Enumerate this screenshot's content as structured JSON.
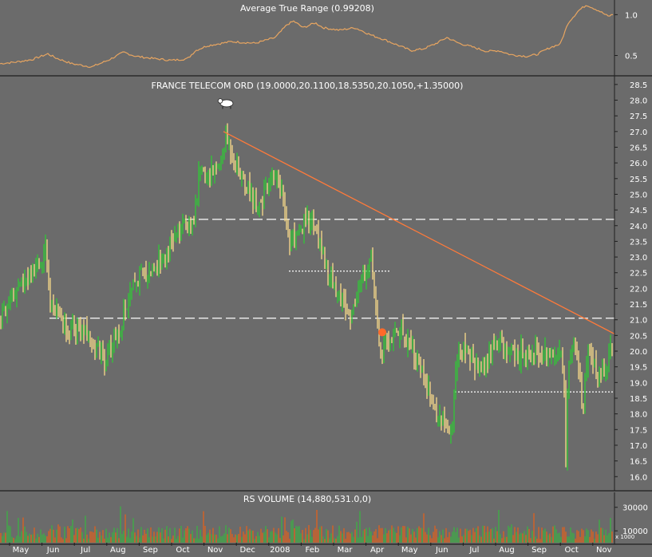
{
  "colors": {
    "background": "#6b6b6b",
    "frame": "#1f1f1f",
    "up_bar": "#34c23a",
    "down_bar": "#f0d488",
    "atr_line": "#e8a560",
    "trendline": "#ff7a3a",
    "marker": "#ff6a2a",
    "text": "#ffffff",
    "volume_up": "#3cb043",
    "volume_down": "#e0601c"
  },
  "chart_data": [
    {
      "type": "line",
      "title": "Average True Range (0.99208)",
      "y_ticks": [
        "1.0",
        "0.5"
      ],
      "ylim": [
        0.3,
        1.15
      ],
      "series": [
        {
          "name": "ATR",
          "points": [
            [
              0,
              0.4
            ],
            [
              20,
              0.42
            ],
            [
              40,
              0.45
            ],
            [
              60,
              0.52
            ],
            [
              70,
              0.47
            ],
            [
              90,
              0.4
            ],
            [
              115,
              0.36
            ],
            [
              135,
              0.44
            ],
            [
              155,
              0.54
            ],
            [
              170,
              0.49
            ],
            [
              195,
              0.46
            ],
            [
              215,
              0.44
            ],
            [
              235,
              0.46
            ],
            [
              245,
              0.56
            ],
            [
              260,
              0.62
            ],
            [
              290,
              0.67
            ],
            [
              320,
              0.65
            ],
            [
              345,
              0.72
            ],
            [
              360,
              0.88
            ],
            [
              368,
              0.92
            ],
            [
              380,
              0.84
            ],
            [
              395,
              0.9
            ],
            [
              405,
              0.84
            ],
            [
              425,
              0.81
            ],
            [
              445,
              0.84
            ],
            [
              465,
              0.75
            ],
            [
              480,
              0.7
            ],
            [
              500,
              0.62
            ],
            [
              515,
              0.56
            ],
            [
              530,
              0.58
            ],
            [
              545,
              0.64
            ],
            [
              560,
              0.72
            ],
            [
              575,
              0.65
            ],
            [
              590,
              0.61
            ],
            [
              610,
              0.55
            ],
            [
              625,
              0.56
            ],
            [
              640,
              0.51
            ],
            [
              660,
              0.49
            ],
            [
              672,
              0.51
            ],
            [
              690,
              0.6
            ],
            [
              702,
              0.64
            ],
            [
              712,
              0.9
            ],
            [
              725,
              1.05
            ],
            [
              735,
              1.12
            ],
            [
              750,
              1.05
            ],
            [
              762,
              0.98
            ],
            [
              768,
              1.0
            ]
          ]
        }
      ]
    },
    {
      "type": "candlestick",
      "title": "FRANCE TELECOM ORD (19.0000,20.1100,18.5350,20.1050,+1.35000)",
      "x_labels": [
        "May",
        "Jun",
        "Jul",
        "Aug",
        "Sep",
        "Oct",
        "Nov",
        "Dec",
        "2008",
        "Feb",
        "Mar",
        "Apr",
        "May",
        "Jun",
        "Jul",
        "Aug",
        "Sep",
        "Oct",
        "Nov"
      ],
      "y_ticks": [
        "28.5",
        "28.0",
        "27.5",
        "27.0",
        "26.5",
        "26.0",
        "25.5",
        "25.0",
        "24.5",
        "24.0",
        "23.5",
        "23.0",
        "22.5",
        "22.0",
        "21.5",
        "21.0",
        "20.5",
        "20.0",
        "19.5",
        "19.0",
        "18.5",
        "18.0",
        "17.5",
        "17.0",
        "16.5",
        "16.0"
      ],
      "ylim": [
        15.6,
        28.7
      ],
      "grid": false,
      "price_path": [
        [
          0,
          21.0
        ],
        [
          8,
          21.4
        ],
        [
          18,
          21.8
        ],
        [
          28,
          22.1
        ],
        [
          40,
          22.3
        ],
        [
          52,
          22.9
        ],
        [
          56,
          23.5
        ],
        [
          60,
          22.8
        ],
        [
          62,
          21.3
        ],
        [
          70,
          21.4
        ],
        [
          82,
          20.8
        ],
        [
          90,
          20.6
        ],
        [
          100,
          20.7
        ],
        [
          112,
          20.4
        ],
        [
          125,
          20.0
        ],
        [
          132,
          19.6
        ],
        [
          138,
          20.1
        ],
        [
          145,
          20.5
        ],
        [
          152,
          20.9
        ],
        [
          158,
          21.4
        ],
        [
          166,
          21.9
        ],
        [
          176,
          22.4
        ],
        [
          186,
          22.5
        ],
        [
          196,
          22.8
        ],
        [
          206,
          23.1
        ],
        [
          216,
          23.5
        ],
        [
          226,
          23.8
        ],
        [
          236,
          24.1
        ],
        [
          244,
          24.3
        ],
        [
          250,
          25.7
        ],
        [
          258,
          25.6
        ],
        [
          268,
          25.8
        ],
        [
          276,
          25.9
        ],
        [
          283,
          26.8
        ],
        [
          290,
          26.4
        ],
        [
          298,
          25.8
        ],
        [
          306,
          25.4
        ],
        [
          314,
          25.0
        ],
        [
          322,
          24.7
        ],
        [
          330,
          24.9
        ],
        [
          338,
          25.2
        ],
        [
          344,
          25.8
        ],
        [
          350,
          25.2
        ],
        [
          356,
          24.7
        ],
        [
          362,
          23.6
        ],
        [
          370,
          23.4
        ],
        [
          378,
          23.8
        ],
        [
          386,
          24.2
        ],
        [
          392,
          24.3
        ],
        [
          398,
          23.6
        ],
        [
          406,
          23.0
        ],
        [
          414,
          22.3
        ],
        [
          422,
          21.9
        ],
        [
          430,
          21.6
        ],
        [
          437,
          21.0
        ],
        [
          444,
          21.5
        ],
        [
          450,
          22.3
        ],
        [
          458,
          22.6
        ],
        [
          464,
          22.9
        ],
        [
          468,
          22.2
        ],
        [
          472,
          21.0
        ],
        [
          477,
          19.9
        ],
        [
          484,
          20.2
        ],
        [
          492,
          20.5
        ],
        [
          500,
          20.7
        ],
        [
          510,
          20.4
        ],
        [
          518,
          20.1
        ],
        [
          526,
          19.4
        ],
        [
          534,
          18.9
        ],
        [
          540,
          18.4
        ],
        [
          548,
          18.0
        ],
        [
          556,
          17.8
        ],
        [
          562,
          17.6
        ],
        [
          567,
          17.3
        ],
        [
          572,
          19.9
        ],
        [
          580,
          20.0
        ],
        [
          590,
          19.8
        ],
        [
          600,
          19.5
        ],
        [
          610,
          19.6
        ],
        [
          618,
          20.2
        ],
        [
          628,
          20.3
        ],
        [
          638,
          20.0
        ],
        [
          648,
          19.9
        ],
        [
          658,
          20.0
        ],
        [
          668,
          20.1
        ],
        [
          678,
          19.8
        ],
        [
          686,
          20.0
        ],
        [
          694,
          19.9
        ],
        [
          700,
          20.0
        ],
        [
          706,
          19.7
        ],
        [
          709,
          16.6
        ],
        [
          712,
          19.3
        ],
        [
          718,
          20.4
        ],
        [
          724,
          19.6
        ],
        [
          730,
          18.2
        ],
        [
          736,
          19.7
        ],
        [
          744,
          19.6
        ],
        [
          752,
          19.3
        ],
        [
          760,
          19.4
        ],
        [
          766,
          20.1
        ]
      ],
      "trendline": [
        [
          280,
          27.0
        ],
        [
          770,
          20.55
        ]
      ],
      "horizontal_levels": [
        {
          "x0": 232,
          "x1": 770,
          "y": 24.2,
          "style": "dashed"
        },
        {
          "x0": 62,
          "x1": 770,
          "y": 21.05,
          "style": "dashed"
        },
        {
          "x0": 362,
          "x1": 488,
          "y": 22.55,
          "style": "dotted"
        },
        {
          "x0": 570,
          "x1": 770,
          "y": 18.7,
          "style": "dotted"
        }
      ],
      "annotations": [
        {
          "kind": "bull-icon",
          "x": 284,
          "y": 27.9
        },
        {
          "kind": "dot",
          "x": 479,
          "y": 20.6
        }
      ]
    },
    {
      "type": "bar",
      "title": "RS VOLUME (14,880,531.0,0)",
      "y_ticks": [
        "30000",
        "10000"
      ],
      "unit_label": "x 1000",
      "ylim": [
        0,
        42000
      ]
    }
  ]
}
